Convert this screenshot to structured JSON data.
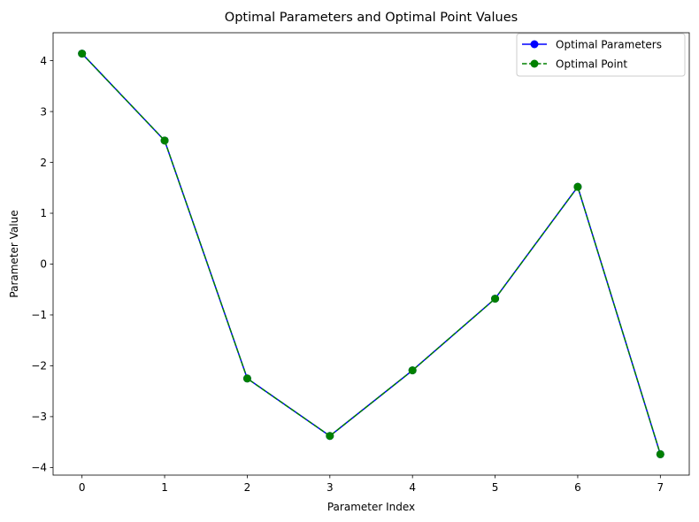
{
  "chart_data": {
    "type": "line",
    "title": "Optimal Parameters and Optimal Point Values",
    "xlabel": "Parameter Index",
    "ylabel": "Parameter Value",
    "x": [
      0,
      1,
      2,
      3,
      4,
      5,
      6,
      7
    ],
    "xlim": [
      -0.35,
      7.35
    ],
    "ylim": [
      -4.15,
      4.55
    ],
    "xticks": [
      "0",
      "1",
      "2",
      "3",
      "4",
      "5",
      "6",
      "7"
    ],
    "yticks": [
      {
        "value": 4,
        "label": "4"
      },
      {
        "value": 3,
        "label": "3"
      },
      {
        "value": 2,
        "label": "2"
      },
      {
        "value": 1,
        "label": "1"
      },
      {
        "value": 0,
        "label": "0"
      },
      {
        "value": -1,
        "label": "−1"
      },
      {
        "value": -2,
        "label": "−2"
      },
      {
        "value": -3,
        "label": "−3"
      },
      {
        "value": -4,
        "label": "−4"
      }
    ],
    "grid": false,
    "legend_position": "top-right",
    "series": [
      {
        "name": "Optimal Parameters",
        "color": "#0000ff",
        "line_style": "solid",
        "marker": "circle",
        "values": [
          4.14,
          2.43,
          -2.25,
          -3.38,
          -2.09,
          -0.68,
          1.52,
          -3.74
        ]
      },
      {
        "name": "Optimal Point",
        "color": "#008000",
        "line_style": "dashed",
        "marker": "circle",
        "values": [
          4.14,
          2.43,
          -2.25,
          -3.38,
          -2.09,
          -0.68,
          1.52,
          -3.74
        ]
      }
    ]
  }
}
